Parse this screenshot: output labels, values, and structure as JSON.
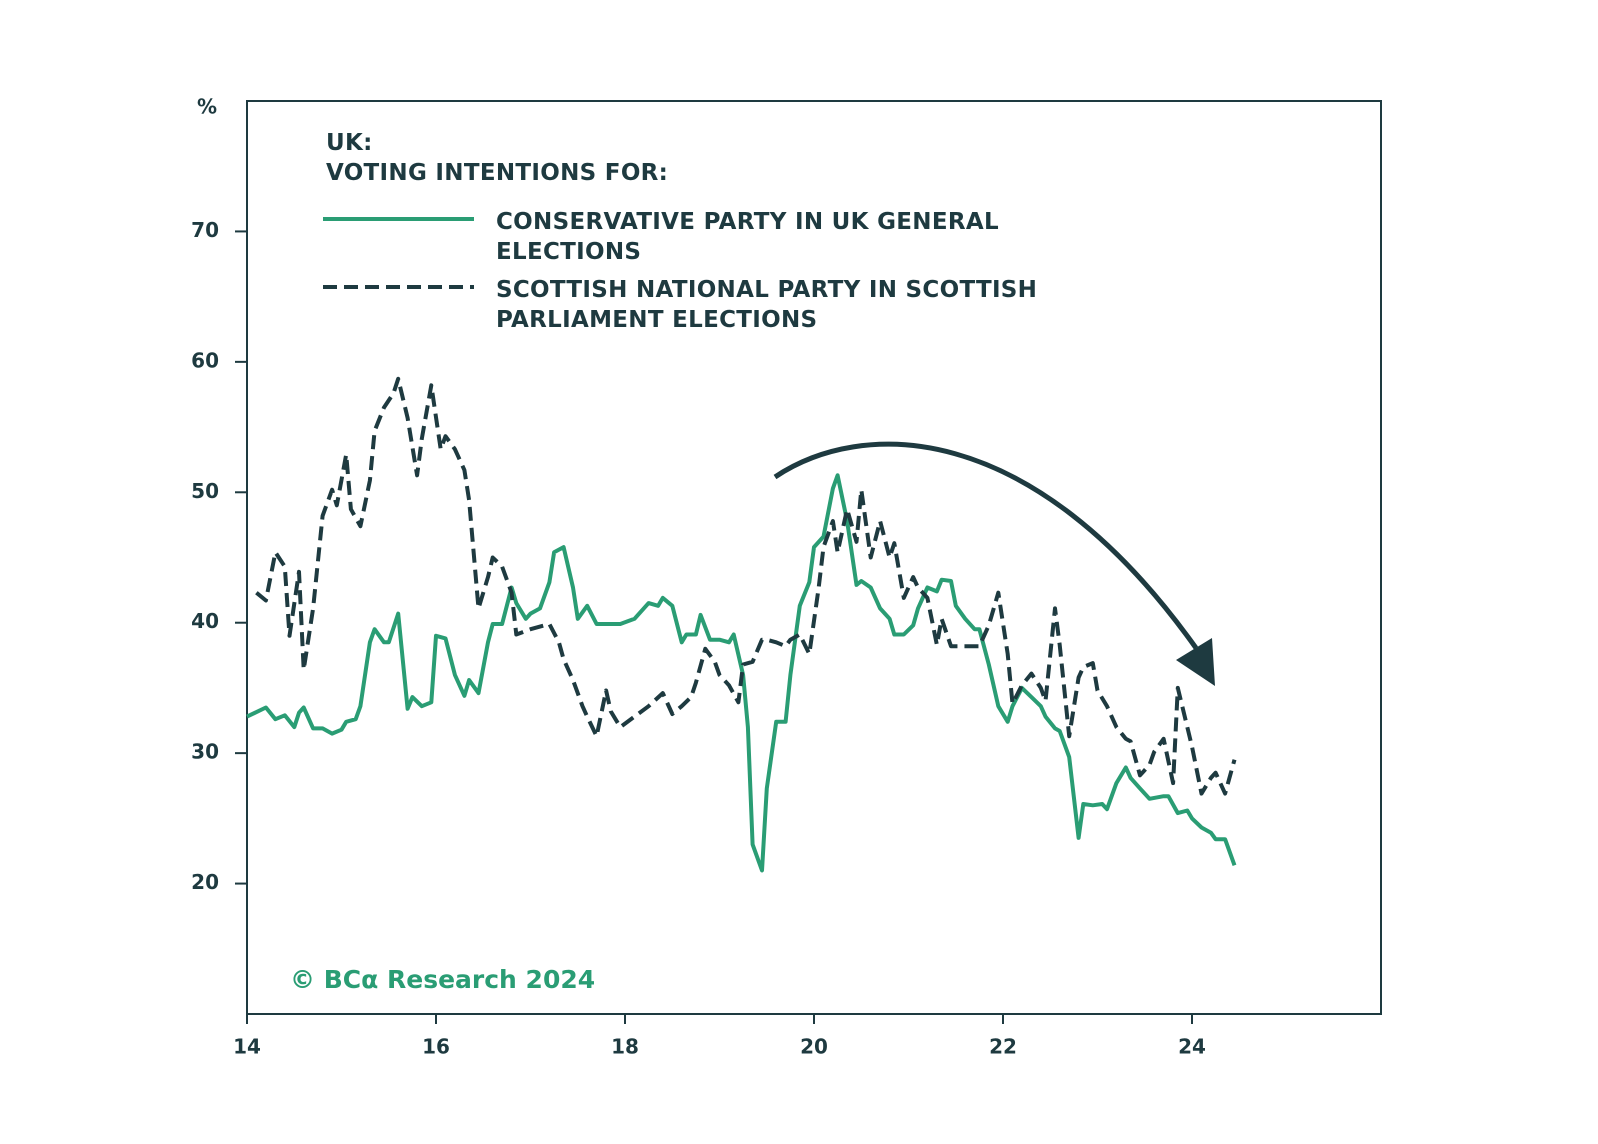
{
  "chart_data": {
    "type": "line",
    "title": "UK:",
    "subtitle": "VOTING INTENTIONS FOR:",
    "y_label": "%",
    "source": "© BCα Research 2024",
    "xlim": [
      14,
      26
    ],
    "xticks": [
      14,
      16,
      18,
      20,
      22,
      24
    ],
    "ylim": [
      10,
      80
    ],
    "yticks": [
      20,
      30,
      40,
      50,
      60,
      70
    ],
    "grid": false,
    "legend": "upper left",
    "series": [
      {
        "name": "CONSERVATIVE PARTY IN UK GENERAL ELECTIONS",
        "color": "#2a9d74",
        "dashed": false,
        "x": [
          14.0,
          14.2,
          14.3,
          14.4,
          14.5,
          14.55,
          14.6,
          14.7,
          14.8,
          14.9,
          15.0,
          15.05,
          15.15,
          15.2,
          15.3,
          15.35,
          15.45,
          15.5,
          15.6,
          15.7,
          15.75,
          15.85,
          15.95,
          16.0,
          16.1,
          16.2,
          16.3,
          16.35,
          16.45,
          16.55,
          16.6,
          16.7,
          16.8,
          16.85,
          16.95,
          17.0,
          17.1,
          17.2,
          17.25,
          17.35,
          17.45,
          17.5,
          17.6,
          17.7,
          17.75,
          17.95,
          18.1,
          18.25,
          18.35,
          18.4,
          18.5,
          18.6,
          18.65,
          18.75,
          18.8,
          18.9,
          19.0,
          19.1,
          19.15,
          19.25,
          19.3,
          19.35,
          19.45,
          19.5,
          19.6,
          19.7,
          19.75,
          19.85,
          19.95,
          20.0,
          20.1,
          20.2,
          20.25,
          20.35,
          20.45,
          20.5,
          20.6,
          20.7,
          20.8,
          20.85,
          20.95,
          21.05,
          21.1,
          21.2,
          21.3,
          21.35,
          21.45,
          21.5,
          21.6,
          21.7,
          21.75,
          21.85,
          21.95,
          22.05,
          22.1,
          22.2,
          22.3,
          22.4,
          22.45,
          22.55,
          22.6,
          22.7,
          22.8,
          22.85,
          22.95,
          23.05,
          23.1,
          23.2,
          23.3,
          23.35,
          23.45,
          23.55,
          23.7,
          23.75,
          23.85,
          23.95,
          24.0,
          24.1,
          24.2,
          24.25,
          24.35,
          24.45
        ],
        "values": [
          32.8,
          33.5,
          32.6,
          32.9,
          32.0,
          33.1,
          33.5,
          31.9,
          31.9,
          31.5,
          31.8,
          32.4,
          32.6,
          33.6,
          38.5,
          39.5,
          38.5,
          38.5,
          40.7,
          33.4,
          34.3,
          33.6,
          33.9,
          39.0,
          38.8,
          36.0,
          34.4,
          35.6,
          34.6,
          38.5,
          39.9,
          39.9,
          42.7,
          41.5,
          40.3,
          40.7,
          41.1,
          43.1,
          45.4,
          45.8,
          42.7,
          40.3,
          41.3,
          39.9,
          39.9,
          39.9,
          40.3,
          41.5,
          41.3,
          41.9,
          41.3,
          38.5,
          39.1,
          39.1,
          40.6,
          38.7,
          38.7,
          38.5,
          39.1,
          36.0,
          32.0,
          23.0,
          21.0,
          27.3,
          32.4,
          32.4,
          36.0,
          41.3,
          43.1,
          45.8,
          46.6,
          50.3,
          51.3,
          47.8,
          42.9,
          43.2,
          42.7,
          41.1,
          40.3,
          39.1,
          39.1,
          39.8,
          41.1,
          42.7,
          42.4,
          43.3,
          43.2,
          41.3,
          40.3,
          39.5,
          39.5,
          36.8,
          33.6,
          32.4,
          33.6,
          35.0,
          34.3,
          33.6,
          32.8,
          31.9,
          31.7,
          29.7,
          23.5,
          26.1,
          26.0,
          26.1,
          25.7,
          27.7,
          28.9,
          28.1,
          27.3,
          26.5,
          26.7,
          26.7,
          25.4,
          25.6,
          25.0,
          24.3,
          23.9,
          23.4,
          23.4,
          21.4
        ]
      },
      {
        "name": "SCOTTISH NATIONAL PARTY IN SCOTTISH PARLIAMENT ELECTIONS",
        "color": "#1e3a40",
        "dashed": true,
        "x": [
          14.1,
          14.2,
          14.3,
          14.4,
          14.45,
          14.55,
          14.6,
          14.7,
          14.8,
          14.9,
          14.95,
          15.05,
          15.1,
          15.2,
          15.3,
          15.35,
          15.45,
          15.55,
          15.6,
          15.7,
          15.8,
          15.85,
          15.95,
          16.05,
          16.1,
          16.2,
          16.3,
          16.35,
          16.45,
          16.55,
          16.6,
          16.7,
          16.8,
          16.85,
          17.0,
          17.2,
          17.3,
          17.35,
          17.45,
          17.55,
          17.6,
          17.7,
          17.8,
          17.85,
          17.95,
          18.1,
          18.25,
          18.4,
          18.5,
          18.6,
          18.7,
          18.75,
          18.85,
          18.95,
          19.0,
          19.1,
          19.2,
          19.25,
          19.35,
          19.45,
          19.5,
          19.6,
          19.7,
          19.75,
          19.85,
          19.95,
          20.05,
          20.1,
          20.2,
          20.25,
          20.35,
          20.45,
          20.5,
          20.6,
          20.7,
          20.8,
          20.85,
          20.95,
          21.05,
          21.1,
          21.2,
          21.3,
          21.35,
          21.45,
          21.6,
          21.75,
          21.85,
          21.95,
          22.05,
          22.1,
          22.2,
          22.3,
          22.4,
          22.45,
          22.55,
          22.6,
          22.7,
          22.8,
          22.85,
          22.95,
          23.0,
          23.1,
          23.2,
          23.3,
          23.35,
          23.45,
          23.55,
          23.6,
          23.7,
          23.8,
          23.85,
          23.95,
          24.0,
          24.1,
          24.2,
          24.25,
          24.35,
          24.45
        ],
        "values": [
          42.3,
          41.7,
          45.4,
          44.3,
          39.0,
          43.9,
          36.4,
          41.1,
          48.2,
          50.2,
          49.0,
          52.9,
          48.7,
          47.4,
          50.9,
          54.7,
          56.5,
          57.6,
          58.7,
          55.7,
          51.3,
          54.1,
          58.2,
          53.3,
          54.3,
          53.3,
          51.7,
          49.4,
          41.1,
          43.5,
          45.0,
          44.3,
          42.3,
          39.1,
          39.5,
          39.9,
          38.5,
          37.2,
          35.6,
          33.6,
          32.8,
          31.3,
          34.8,
          33.2,
          32.0,
          32.8,
          33.6,
          34.6,
          33.0,
          33.6,
          34.3,
          35.4,
          38.0,
          37.0,
          36.0,
          35.2,
          33.9,
          36.8,
          37.0,
          38.7,
          38.7,
          38.5,
          38.2,
          38.7,
          39.1,
          37.6,
          42.7,
          45.8,
          47.8,
          45.4,
          48.7,
          46.2,
          50.2,
          45.0,
          47.8,
          45.0,
          46.1,
          41.9,
          43.5,
          42.7,
          41.9,
          38.3,
          40.3,
          38.2,
          38.2,
          38.2,
          39.8,
          42.3,
          37.6,
          33.8,
          35.2,
          36.1,
          35.0,
          34.0,
          41.1,
          38.3,
          31.3,
          35.8,
          36.6,
          36.9,
          34.8,
          33.6,
          32.0,
          31.1,
          30.9,
          28.3,
          29.1,
          30.1,
          31.1,
          27.7,
          35.0,
          32.0,
          30.5,
          26.9,
          28.1,
          28.5,
          26.9,
          29.5
        ]
      }
    ]
  }
}
